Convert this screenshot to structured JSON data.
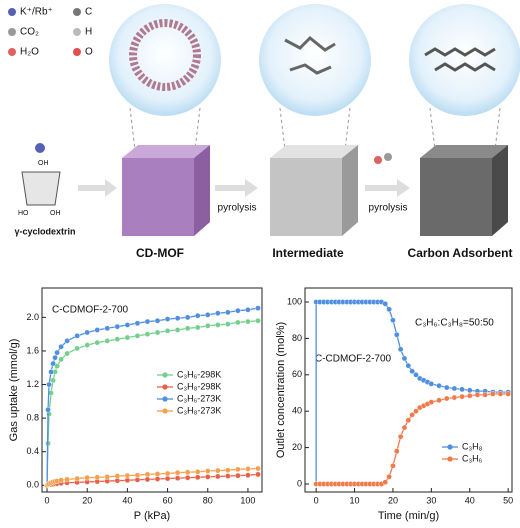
{
  "schematic": {
    "legend": [
      "K⁺/Rb⁺",
      "C",
      "CO₂",
      "H",
      "H₂O",
      "O"
    ],
    "molecule_labels": [
      "OH",
      "HO",
      "OH"
    ],
    "molecule_name": "γ-cyclodextrin",
    "stages": [
      "CD-MOF",
      "Intermediate",
      "Carbon Adsorbent"
    ],
    "arrow_labels": [
      "pyrolysis",
      "pyrolysis"
    ]
  },
  "chart_data": [
    {
      "type": "line",
      "ylabel": "Gas uptake (mmol/g)",
      "xlabel": "P (kPa)",
      "annotation": "C-CDMOF-2-700",
      "legend_position": "center right",
      "xlim": [
        -2.5,
        107
      ],
      "ylim": [
        -0.08,
        2.35
      ],
      "xticks": [
        0,
        20,
        40,
        60,
        80,
        100
      ],
      "yticks": [
        {
          "value": 0,
          "label": "0.0"
        },
        0.4,
        0.8,
        1.2,
        1.6,
        {
          "value": 2,
          "label": "2.0"
        }
      ],
      "x": [
        0,
        0.5,
        1,
        2,
        3,
        4,
        5,
        7,
        10,
        15,
        20,
        25,
        30,
        35,
        40,
        45,
        50,
        55,
        60,
        65,
        70,
        75,
        80,
        85,
        90,
        95,
        100,
        105
      ],
      "series": [
        {
          "name": "C₃H₆-298K",
          "color": "#72cf8c",
          "values": [
            0,
            0.5,
            0.85,
            1.1,
            1.25,
            1.35,
            1.42,
            1.5,
            1.57,
            1.63,
            1.67,
            1.7,
            1.72,
            1.74,
            1.76,
            1.78,
            1.8,
            1.82,
            1.84,
            1.85,
            1.87,
            1.88,
            1.9,
            1.91,
            1.92,
            1.94,
            1.95,
            1.96
          ]
        },
        {
          "name": "C₃H₈-298K",
          "color": "#e8604a",
          "values": [
            0,
            0.005,
            0.01,
            0.01,
            0.015,
            0.02,
            0.02,
            0.025,
            0.03,
            0.035,
            0.04,
            0.045,
            0.05,
            0.055,
            0.06,
            0.065,
            0.07,
            0.075,
            0.08,
            0.085,
            0.09,
            0.095,
            0.1,
            0.105,
            0.11,
            0.115,
            0.12,
            0.13
          ]
        },
        {
          "name": "C₃H₆-273K",
          "color": "#4f8fe0",
          "values": [
            0,
            0.9,
            1.2,
            1.35,
            1.45,
            1.52,
            1.58,
            1.65,
            1.72,
            1.78,
            1.82,
            1.85,
            1.87,
            1.89,
            1.91,
            1.93,
            1.95,
            1.96,
            1.98,
            1.99,
            2.0,
            2.02,
            2.03,
            2.05,
            2.06,
            2.08,
            2.09,
            2.11
          ]
        },
        {
          "name": "C₃H₈-273K",
          "color": "#f5a04a",
          "values": [
            0,
            0.01,
            0.02,
            0.03,
            0.04,
            0.045,
            0.05,
            0.06,
            0.07,
            0.08,
            0.09,
            0.095,
            0.1,
            0.11,
            0.115,
            0.12,
            0.13,
            0.135,
            0.14,
            0.15,
            0.155,
            0.16,
            0.17,
            0.175,
            0.18,
            0.19,
            0.195,
            0.2
          ]
        }
      ]
    },
    {
      "type": "line",
      "ylabel": "Outlet concentration (mol%)",
      "xlabel": "Time (min/g)",
      "annotation": "C-CDMOF-2-700",
      "subtitle": "C₃H₆:C₃H₈=50:50",
      "legend_position": "lower right",
      "xlim": [
        -2.9,
        51
      ],
      "ylim": [
        -4.4,
        107.7
      ],
      "xticks": [
        0,
        10,
        20,
        30,
        40,
        50
      ],
      "yticks": [
        0,
        20,
        40,
        60,
        80,
        100
      ],
      "series": [
        {
          "name": "C₃H₈",
          "color": "#4f8fe0",
          "x": [
            0,
            0,
            1,
            2,
            3,
            4,
            5,
            6,
            7,
            8,
            9,
            10,
            11,
            12,
            13,
            14,
            15,
            16,
            17,
            18,
            19,
            20,
            21,
            22,
            23,
            24,
            25,
            26,
            27,
            28,
            29,
            30,
            32,
            34,
            36,
            38,
            40,
            42,
            44,
            46,
            48,
            50
          ],
          "values": [
            0,
            100,
            100,
            100,
            100,
            100,
            100,
            100,
            100,
            100,
            100,
            100,
            100,
            100,
            100,
            100,
            100,
            100,
            100,
            99,
            96,
            90,
            82,
            74,
            69,
            65,
            62,
            60,
            58,
            57,
            56,
            55,
            54,
            53,
            52.5,
            52,
            51.5,
            51,
            51,
            50.5,
            50.5,
            50.5
          ]
        },
        {
          "name": "C₃H₆",
          "color": "#f07a4a",
          "x": [
            0,
            1,
            2,
            3,
            4,
            5,
            6,
            7,
            8,
            9,
            10,
            11,
            12,
            13,
            14,
            15,
            16,
            17,
            18,
            19,
            20,
            21,
            22,
            23,
            24,
            25,
            26,
            27,
            28,
            29,
            30,
            32,
            34,
            36,
            38,
            40,
            42,
            44,
            46,
            48,
            50
          ],
          "values": [
            0,
            0,
            0,
            0,
            0,
            0,
            0,
            0,
            0,
            0,
            0,
            0,
            0,
            0,
            0,
            0,
            0,
            0,
            1,
            4,
            10,
            18,
            26,
            31,
            35,
            38,
            40,
            42,
            43,
            44,
            45,
            46,
            47,
            47.5,
            48,
            48.5,
            49,
            49,
            49.5,
            49.5,
            49.5
          ]
        }
      ]
    }
  ]
}
